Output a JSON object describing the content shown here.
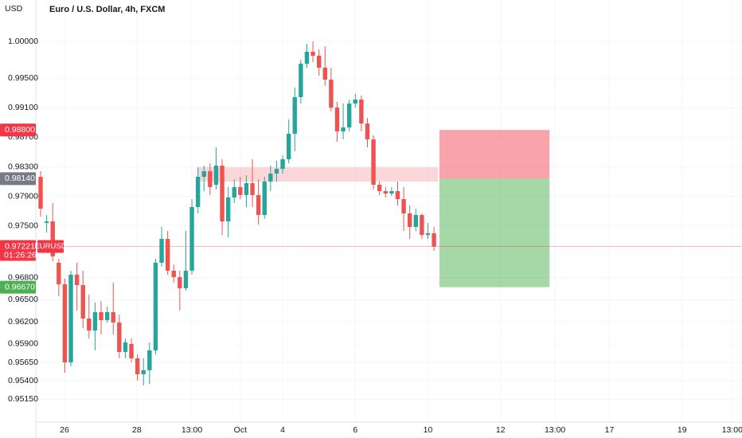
{
  "chart_data": {
    "type": "candlestick",
    "title": "Euro / U.S. Dollar, 4h, FXCM",
    "currency": "USD",
    "open": [
      0.98165,
      0.9754,
      0.97561,
      0.97001,
      0.96709,
      0.95651,
      0.96839,
      0.96698,
      0.96245,
      0.96083,
      0.96331,
      0.96223,
      0.96331,
      0.96191,
      0.95792,
      0.959,
      0.95706,
      0.9549,
      0.95544,
      0.95814,
      0.97001,
      0.97324,
      0.96893,
      0.96806,
      0.96655,
      0.96893,
      0.97756,
      0.98165,
      0.98241,
      0.98058,
      0.98317,
      0.97561,
      0.97885,
      0.98026,
      0.97918,
      0.98079,
      0.97918,
      0.97648,
      0.98101,
      0.98209,
      0.98273,
      0.98403,
      0.98748,
      0.99245,
      0.99698,
      0.9986,
      0.99806,
      0.99644,
      0.99482,
      0.99104,
      0.98781,
      0.98835,
      0.99158,
      0.99212,
      0.98888,
      0.98673,
      0.98058,
      0.97971,
      0.97939,
      0.97971,
      0.97863,
      0.97669,
      0.97486,
      0.97648,
      0.97378,
      0.974
    ],
    "high": [
      0.98241,
      0.97648,
      0.9781,
      0.97054,
      0.96785,
      0.96893,
      0.97001,
      0.96893,
      0.96569,
      0.96461,
      0.96482,
      0.96407,
      0.96731,
      0.96299,
      0.95975,
      0.95975,
      0.9576,
      0.95706,
      0.95922,
      0.97054,
      0.97486,
      0.97432,
      0.96979,
      0.96893,
      0.97432,
      0.97863,
      0.98295,
      0.98317,
      0.98349,
      0.98565,
      0.98403,
      0.98026,
      0.98133,
      0.98165,
      0.98187,
      0.98403,
      0.98133,
      0.98165,
      0.98317,
      0.98381,
      0.98457,
      0.98942,
      0.99374,
      0.99752,
      0.99968,
      1.0,
      0.99892,
      0.99935,
      0.99644,
      0.9918,
      0.99158,
      0.99212,
      0.99288,
      0.99266,
      0.98964,
      0.98727,
      0.98101,
      0.98026,
      0.98026,
      0.98101,
      0.98026,
      0.97777,
      0.97734,
      0.97669,
      0.9754,
      0.97486
    ],
    "low": [
      0.97626,
      0.9741,
      0.97021,
      0.96547,
      0.95511,
      0.95597,
      0.96353,
      0.96115,
      0.95975,
      0.95814,
      0.96029,
      0.96191,
      0.96029,
      0.95706,
      0.95706,
      0.95651,
      0.95403,
      0.95339,
      0.9536,
      0.9576,
      0.96946,
      0.96839,
      0.96731,
      0.96353,
      0.96623,
      0.96839,
      0.97669,
      0.97971,
      0.97918,
      0.97993,
      0.97378,
      0.97346,
      0.9781,
      0.97863,
      0.97756,
      0.97756,
      0.97518,
      0.97593,
      0.97971,
      0.98101,
      0.98209,
      0.98349,
      0.98511,
      0.99158,
      0.99644,
      0.99719,
      0.99536,
      0.99396,
      0.9905,
      0.9864,
      0.98673,
      0.98781,
      0.99104,
      0.98781,
      0.98565,
      0.97993,
      0.97918,
      0.97885,
      0.97907,
      0.97777,
      0.97432,
      0.97324,
      0.97432,
      0.97324,
      0.97324,
      0.97162
    ],
    "close": [
      0.97734,
      0.97561,
      0.97087,
      0.96709,
      0.95651,
      0.96839,
      0.96698,
      0.96245,
      0.96083,
      0.96331,
      0.96223,
      0.96331,
      0.96191,
      0.95792,
      0.95922,
      0.95706,
      0.9549,
      0.95544,
      0.95814,
      0.97001,
      0.97324,
      0.96893,
      0.96806,
      0.96655,
      0.96893,
      0.97756,
      0.98165,
      0.98241,
      0.98026,
      0.98317,
      0.97561,
      0.97885,
      0.98026,
      0.97918,
      0.98079,
      0.97918,
      0.97648,
      0.98101,
      0.98209,
      0.98273,
      0.98403,
      0.98748,
      0.99245,
      0.99698,
      0.9986,
      0.99806,
      0.99644,
      0.99482,
      0.99104,
      0.98781,
      0.98835,
      0.99158,
      0.99212,
      0.98888,
      0.98673,
      0.98058,
      0.97971,
      0.97939,
      0.97971,
      0.97863,
      0.97669,
      0.97486,
      0.97648,
      0.97378,
      0.974,
      0.97221
    ],
    "colors": {
      "up": "#26a69a",
      "down": "#ef5350"
    },
    "ylim": [
      0.94842,
      1.00561
    ],
    "yticks": [
      {
        "value": 1.0,
        "label": "1.00000"
      },
      {
        "value": 0.995,
        "label": "0.99500"
      },
      {
        "value": 0.991,
        "label": "0.99100"
      },
      {
        "value": 0.987,
        "label": "0.98700"
      },
      {
        "value": 0.983,
        "label": "0.98300"
      },
      {
        "value": 0.979,
        "label": "0.97900"
      },
      {
        "value": 0.975,
        "label": "0.97500"
      },
      {
        "value": 0.968,
        "label": "0.96800"
      },
      {
        "value": 0.965,
        "label": "0.96500"
      },
      {
        "value": 0.962,
        "label": "0.96200"
      },
      {
        "value": 0.959,
        "label": "0.95900"
      },
      {
        "value": 0.9565,
        "label": "0.95650"
      },
      {
        "value": 0.954,
        "label": "0.95400"
      },
      {
        "value": 0.9515,
        "label": "0.95150"
      }
    ],
    "xlim": [
      -0.79,
      115.9
    ],
    "xticks": [
      {
        "value": 3.95,
        "label": "26"
      },
      {
        "value": 15.9,
        "label": "28"
      },
      {
        "value": 25,
        "label": "13:00"
      },
      {
        "value": 33,
        "label": "Oct"
      },
      {
        "value": 40,
        "label": "4"
      },
      {
        "value": 52,
        "label": "6"
      },
      {
        "value": 64,
        "label": "10"
      },
      {
        "value": 76,
        "label": "12"
      },
      {
        "value": 85,
        "label": "13:00"
      },
      {
        "value": 94,
        "label": "17"
      },
      {
        "value": 106,
        "label": "19"
      },
      {
        "value": 114.3,
        "label": "13:00"
      }
    ],
    "zone": {
      "top": 0.98295,
      "bottom": 0.98101,
      "start": 25.9,
      "end": 65.7,
      "color": "rgba(242,54,69,0.2)"
    },
    "position": {
      "entry": 0.9814,
      "stop": 0.988,
      "target": 0.9667,
      "start": 65.9,
      "end": 84.1,
      "stop_color": "rgba(242,54,69,0.45)",
      "target_color": "rgba(76,175,80,0.5)"
    },
    "price_tags": [
      {
        "value": 0.988,
        "label": "0.98800",
        "color": "#f23645"
      },
      {
        "value": 0.9814,
        "label": "0.98140",
        "color": "#787b86"
      },
      {
        "value": 0.9667,
        "label": "0.96670",
        "color": "#4caf50"
      }
    ],
    "last_price": {
      "value": 0.97221,
      "label": "0.97221",
      "symbol": "EURUSD",
      "countdown": "01:26:26",
      "color": "#f23645"
    }
  }
}
